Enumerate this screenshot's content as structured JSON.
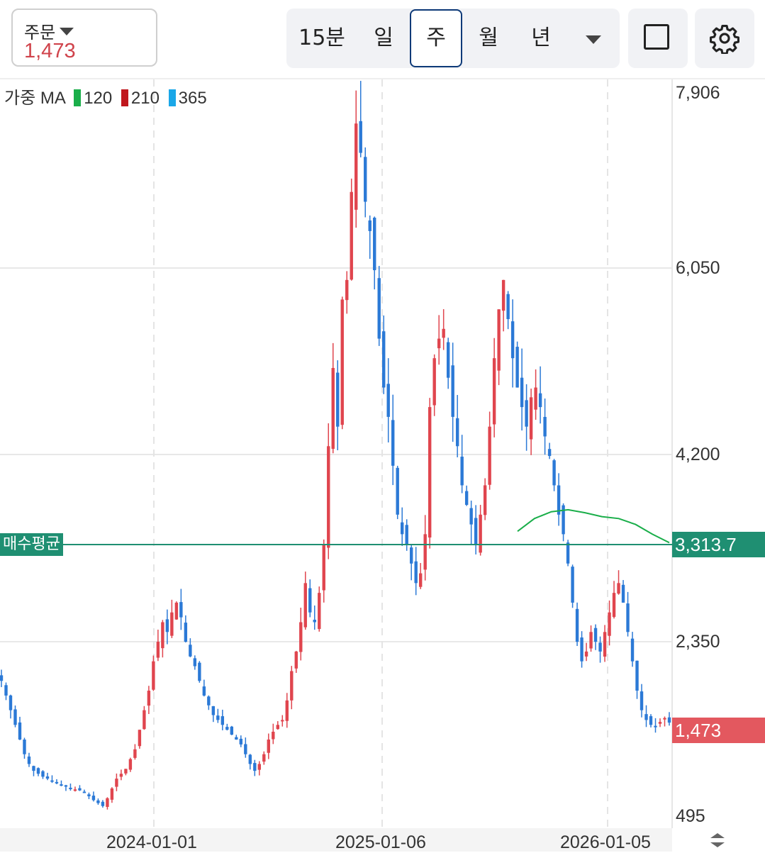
{
  "order": {
    "label": "주문",
    "value": "1,473"
  },
  "timeframes": [
    "15분",
    "일",
    "주",
    "월",
    "년"
  ],
  "active_timeframe": "주",
  "icons": {
    "fullscreen": "square-icon",
    "settings": "gear-icon",
    "dropdown": "caret-down-icon",
    "scroll": "scroll-handle-icon"
  },
  "ma_legend": {
    "prefix": "가중 MA",
    "periods": [
      "120",
      "210",
      "365"
    ],
    "colors": [
      "#1aae4a",
      "#c0171d",
      "#1aa7e8"
    ]
  },
  "colors": {
    "up": "#e0454e",
    "down": "#2b79d6",
    "avg_line": "#1f8f72",
    "current": "#e3585f",
    "ma120": "#1aae4a"
  },
  "price_axis": {
    "labels": [
      "7,906",
      "6,050",
      "4,200",
      "2,350",
      "495"
    ]
  },
  "date_axis": {
    "labels": [
      "2024-01-01",
      "2025-01-06",
      "2026-01-05"
    ]
  },
  "avg_buy": {
    "label": "매수평균",
    "price": "3,313.7"
  },
  "current_price": "1,473",
  "chart_data": {
    "type": "candlestick",
    "ylim": [
      495,
      7906
    ],
    "ma120_weekly": [
      3430,
      3560,
      3630,
      3650,
      3620,
      3580,
      3560,
      3500,
      3400,
      3313.7
    ],
    "closes_weekly": [
      1900,
      1750,
      1600,
      1450,
      1300,
      1150,
      1050,
      980,
      950,
      920,
      900,
      880,
      860,
      840,
      820,
      800,
      790,
      780,
      760,
      720,
      680,
      650,
      620,
      700,
      800,
      900,
      950,
      1000,
      1100,
      1200,
      1400,
      1600,
      1800,
      2100,
      2300,
      2500,
      2400,
      2600,
      2700,
      2550,
      2300,
      2150,
      2050,
      1900,
      1750,
      1650,
      1550,
      1500,
      1450,
      1400,
      1350,
      1300,
      1250,
      1150,
      1050,
      980,
      1050,
      1150,
      1300,
      1380,
      1450,
      1500,
      1700,
      2000,
      2200,
      2500,
      2900,
      2600,
      2500,
      2800,
      3300,
      4300,
      5100,
      4500,
      5800,
      6000,
      6900,
      7600,
      7300,
      6800,
      6500,
      6100,
      5400,
      4900,
      4600,
      4100,
      3600,
      3400,
      3300,
      3100,
      2900,
      3000,
      3400,
      4700,
      5200,
      5400,
      5500,
      5000,
      4600,
      4300,
      3900,
      3700,
      3500,
      3300,
      3600,
      3900,
      4500,
      5200,
      5700,
      6000,
      5600,
      5200,
      4900,
      4700,
      4500,
      4800,
      4900,
      4700,
      4400,
      4200,
      3900,
      3600,
      3400,
      3100,
      2700,
      2300,
      2100,
      2200,
      2400,
      2300,
      2200,
      2400,
      2600,
      2800,
      2900,
      2700,
      2400,
      2100,
      1800,
      1600,
      1500,
      1450,
      1430,
      1480,
      1520,
      1473
    ]
  }
}
